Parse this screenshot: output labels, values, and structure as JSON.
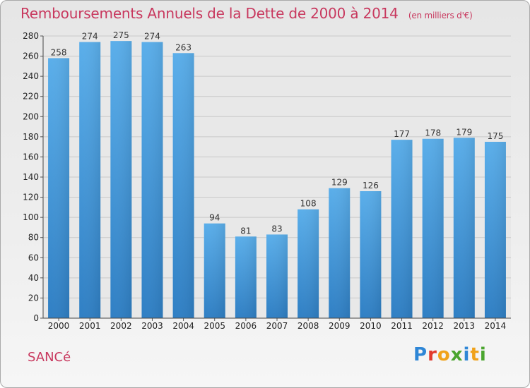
{
  "chart_data": {
    "type": "bar",
    "title": "Remboursements Annuels de la Dette de 2000 à 2014",
    "unit_note": "(en milliers d'€)",
    "categories": [
      "2000",
      "2001",
      "2002",
      "2003",
      "2004",
      "2005",
      "2006",
      "2007",
      "2008",
      "2009",
      "2010",
      "2011",
      "2012",
      "2013",
      "2014"
    ],
    "values": [
      258,
      274,
      275,
      274,
      263,
      94,
      81,
      83,
      108,
      129,
      126,
      177,
      178,
      179,
      175
    ],
    "ylim": [
      0,
      280
    ],
    "yticks": [
      0,
      20,
      40,
      60,
      80,
      100,
      120,
      140,
      160,
      180,
      200,
      220,
      240,
      260,
      280
    ],
    "grid": true,
    "bar_color": "#4a9fe0",
    "title_color": "#c8385e"
  },
  "footer": {
    "commune": "SANCé",
    "logo": [
      "P",
      "r",
      "o",
      "x",
      "i",
      "t",
      "i"
    ]
  }
}
